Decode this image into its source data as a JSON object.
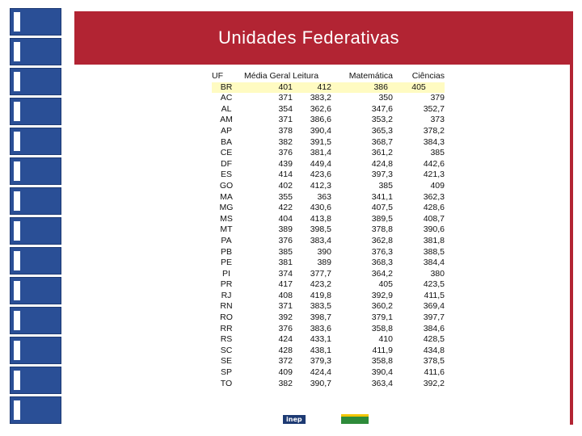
{
  "title": "Unidades Federativas",
  "footer": {
    "logo_left": "inep",
    "logo_right": "brasil"
  },
  "table": {
    "headers": [
      "UF",
      "Média Geral",
      "Leitura",
      "Matemática",
      "Ciências"
    ],
    "rows": [
      [
        "BR",
        "401",
        "412",
        "386",
        "405"
      ],
      [
        "AC",
        "371",
        "383,2",
        "350",
        "379"
      ],
      [
        "AL",
        "354",
        "362,6",
        "347,6",
        "352,7"
      ],
      [
        "AM",
        "371",
        "386,6",
        "353,2",
        "373"
      ],
      [
        "AP",
        "378",
        "390,4",
        "365,3",
        "378,2"
      ],
      [
        "BA",
        "382",
        "391,5",
        "368,7",
        "384,3"
      ],
      [
        "CE",
        "376",
        "381,4",
        "361,2",
        "385"
      ],
      [
        "DF",
        "439",
        "449,4",
        "424,8",
        "442,6"
      ],
      [
        "ES",
        "414",
        "423,6",
        "397,3",
        "421,3"
      ],
      [
        "GO",
        "402",
        "412,3",
        "385",
        "409"
      ],
      [
        "MA",
        "355",
        "363",
        "341,1",
        "362,3"
      ],
      [
        "MG",
        "422",
        "430,6",
        "407,5",
        "428,6"
      ],
      [
        "MS",
        "404",
        "413,8",
        "389,5",
        "408,7"
      ],
      [
        "MT",
        "389",
        "398,5",
        "378,8",
        "390,6"
      ],
      [
        "PA",
        "376",
        "383,4",
        "362,8",
        "381,8"
      ],
      [
        "PB",
        "385",
        "390",
        "376,3",
        "388,5"
      ],
      [
        "PE",
        "381",
        "389",
        "368,3",
        "384,4"
      ],
      [
        "PI",
        "374",
        "377,7",
        "364,2",
        "380"
      ],
      [
        "PR",
        "417",
        "423,2",
        "405",
        "423,5"
      ],
      [
        "RJ",
        "408",
        "419,8",
        "392,9",
        "411,5"
      ],
      [
        "RN",
        "371",
        "383,5",
        "360,2",
        "369,4"
      ],
      [
        "RO",
        "392",
        "398,7",
        "379,1",
        "397,7"
      ],
      [
        "RR",
        "376",
        "383,6",
        "358,8",
        "384,6"
      ],
      [
        "RS",
        "424",
        "433,1",
        "410",
        "428,5"
      ],
      [
        "SC",
        "428",
        "438,1",
        "411,9",
        "434,8"
      ],
      [
        "SE",
        "372",
        "379,3",
        "358,8",
        "378,5"
      ],
      [
        "SP",
        "409",
        "424,4",
        "390,4",
        "411,6"
      ],
      [
        "TO",
        "382",
        "390,7",
        "363,4",
        "392,2"
      ]
    ]
  }
}
